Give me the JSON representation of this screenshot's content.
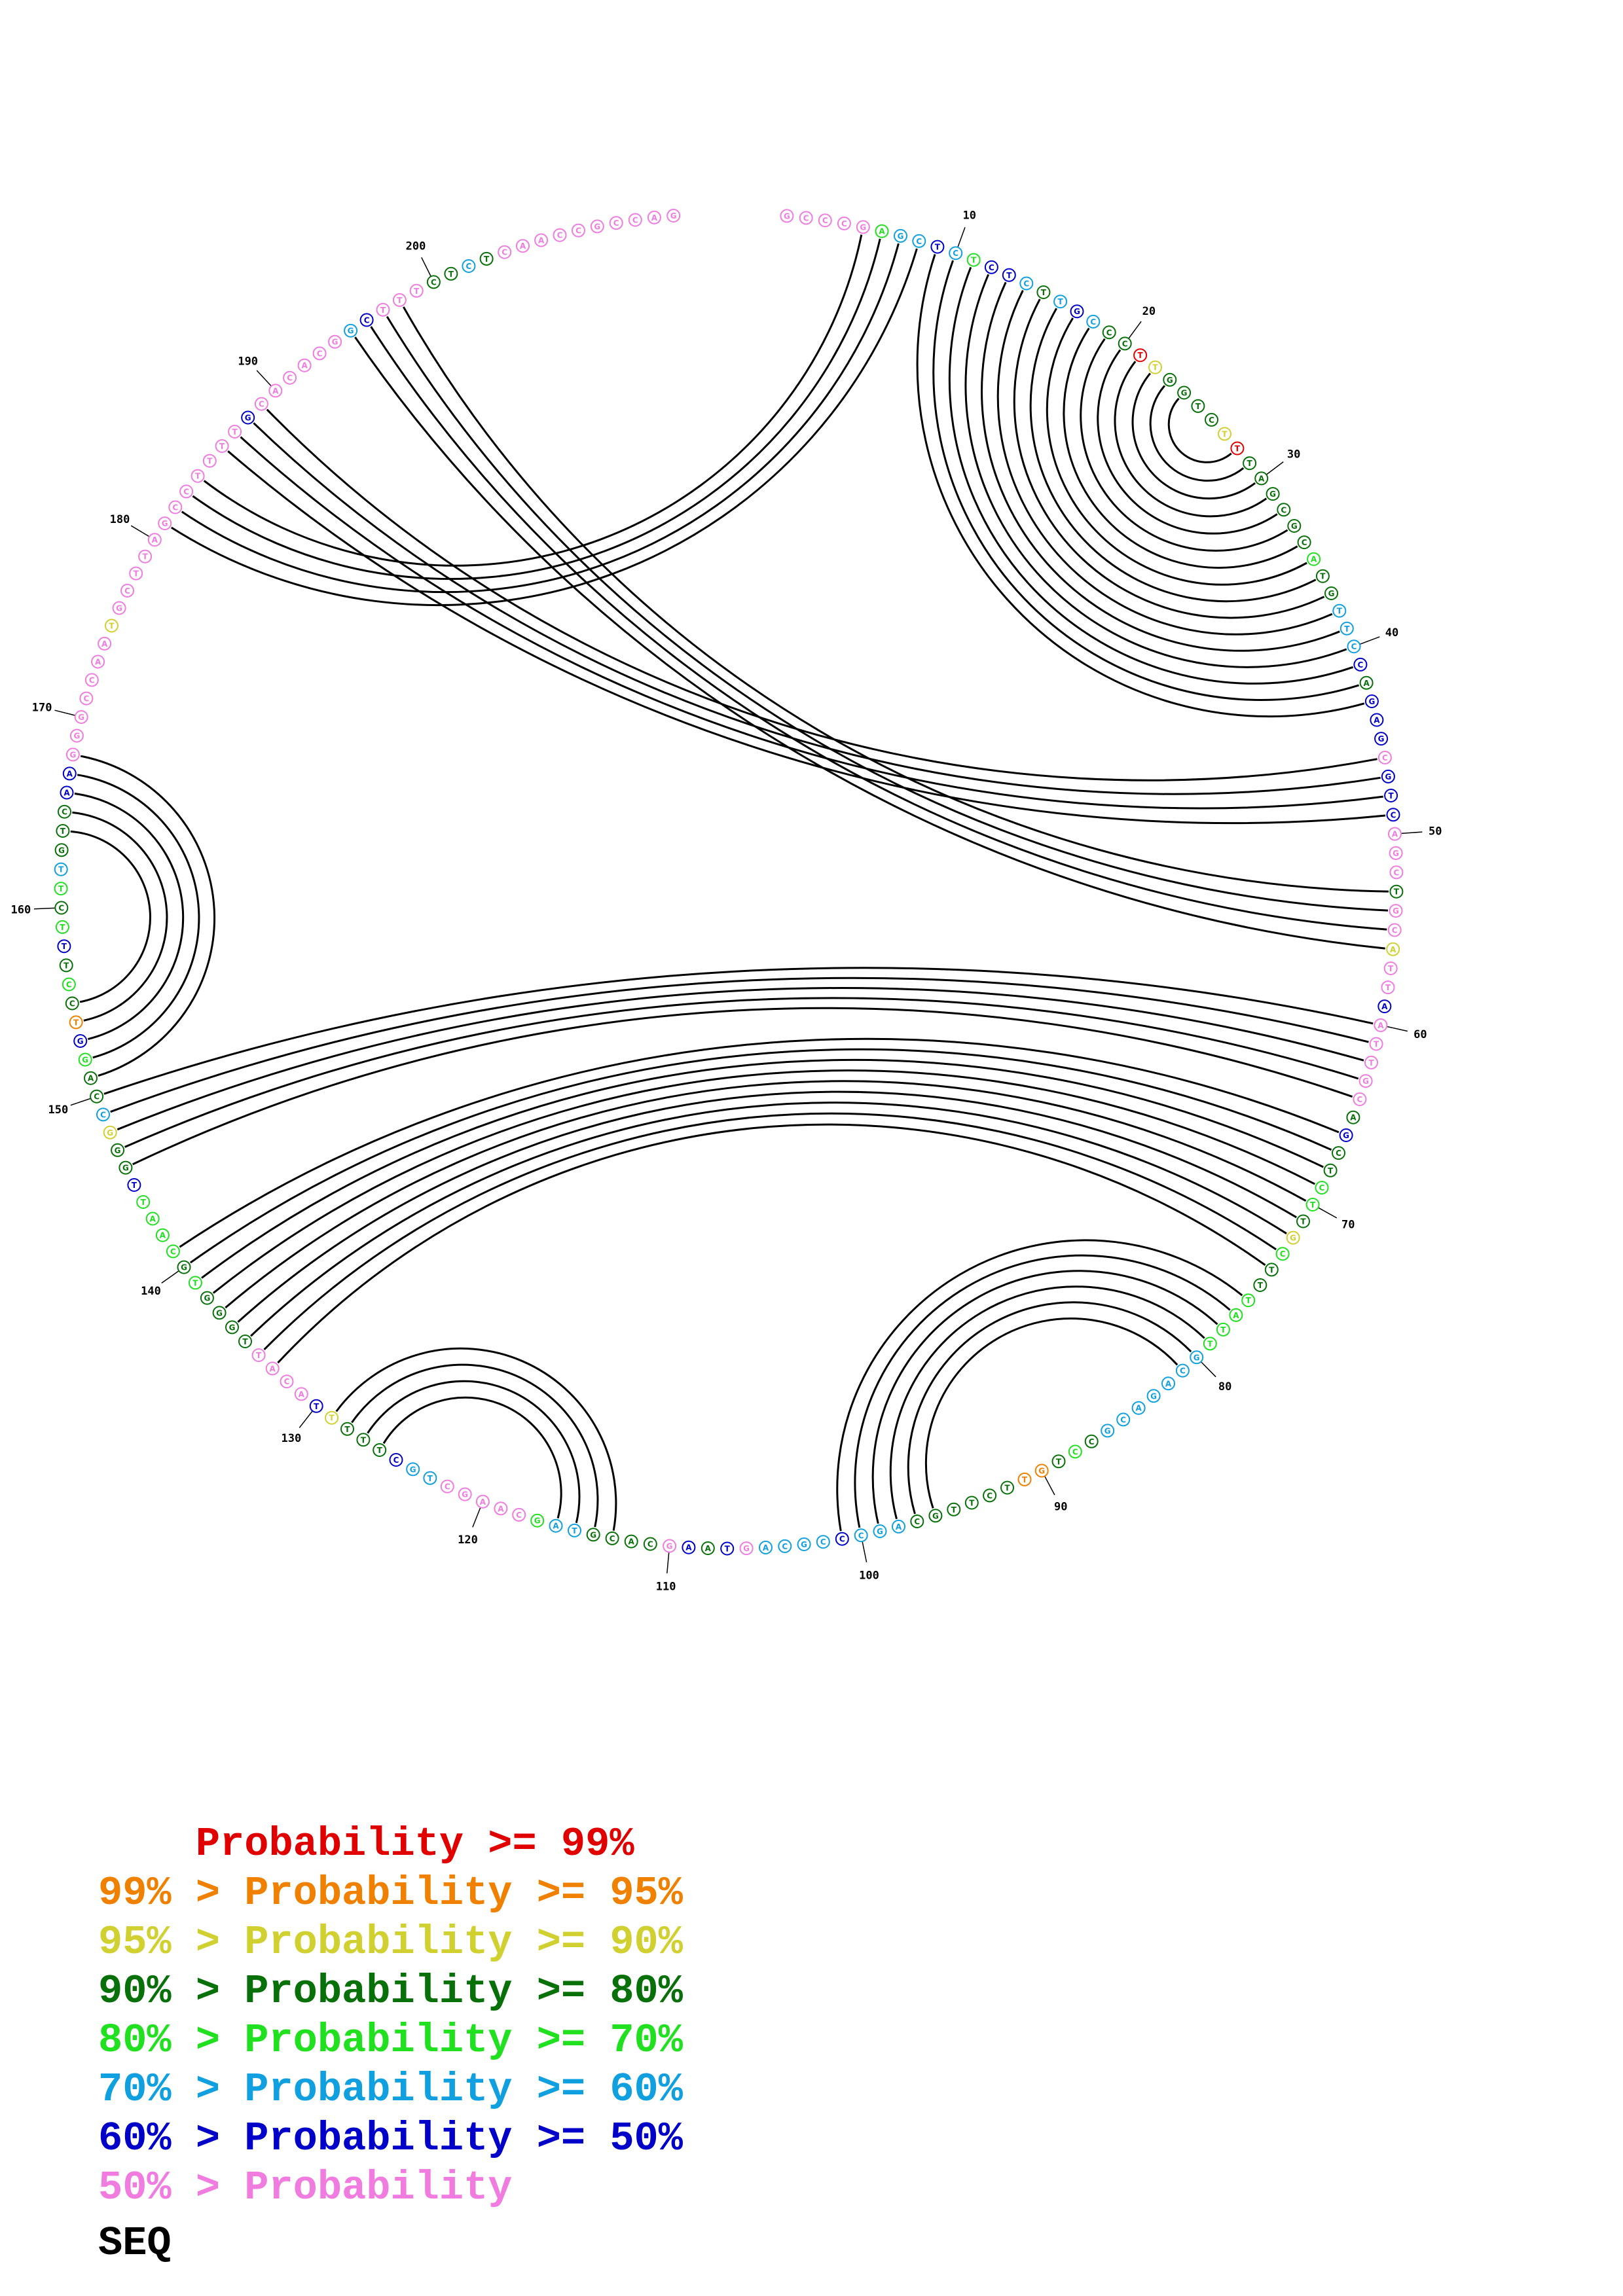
{
  "sequence": "GCCCGAGCTCTCTCTTGCCCTTGGTCTTTAGCGCATGTTCCAGAGCGTCAGCTGCATTAATTGCAGCTCTTGCTTTATTGCAGACGCCTGTTCTTGCAGCCCGCAGTAAGCACGTAGCAAGCTGCTTTTTACATTGGGTGCAATTGGGCCAGGTCCTTTCTTGTCAAGGGCCAATGCTTAGCCTTTTGCACACGGCTTTCTCTCAACCGCCAG",
  "probability_classes": [
    "pink",
    "pink",
    "pink",
    "pink",
    "pink",
    "green",
    "cyan",
    "cyan",
    "blue",
    "cyan",
    "green",
    "blue",
    "blue",
    "cyan",
    "dkgreen",
    "cyan",
    "blue",
    "cyan",
    "dkgreen",
    "dkgreen",
    "red",
    "yellow",
    "dkgreen",
    "dkgreen",
    "dkgreen",
    "dkgreen",
    "yellow",
    "red",
    "dkgreen",
    "dkgreen",
    "dkgreen",
    "dkgreen",
    "dkgreen",
    "dkgreen",
    "green",
    "dkgreen",
    "dkgreen",
    "cyan",
    "cyan",
    "cyan",
    "blue",
    "dkgreen",
    "blue",
    "blue",
    "blue",
    "pink",
    "blue",
    "blue",
    "blue",
    "pink",
    "pink",
    "pink",
    "dkgreen",
    "pink",
    "pink",
    "yellow",
    "pink",
    "pink",
    "blue",
    "pink",
    "pink",
    "pink",
    "pink",
    "pink",
    "dkgreen",
    "blue",
    "dkgreen",
    "dkgreen",
    "green",
    "green",
    "dkgreen",
    "yellow",
    "green",
    "dkgreen",
    "dkgreen",
    "green",
    "green",
    "green",
    "green",
    "cyan",
    "cyan",
    "cyan",
    "cyan",
    "cyan",
    "cyan",
    "cyan",
    "dkgreen",
    "green",
    "dkgreen",
    "orange",
    "orange",
    "dkgreen",
    "dkgreen",
    "dkgreen",
    "dkgreen",
    "dkgreen",
    "dkgreen",
    "cyan",
    "cyan",
    "cyan",
    "blue",
    "cyan",
    "cyan",
    "cyan",
    "cyan",
    "pink",
    "blue",
    "dkgreen",
    "blue",
    "pink",
    "dkgreen",
    "dkgreen",
    "dkgreen",
    "dkgreen",
    "cyan",
    "cyan",
    "green",
    "pink",
    "pink",
    "pink",
    "pink",
    "pink",
    "cyan",
    "cyan",
    "blue",
    "dkgreen",
    "dkgreen",
    "dkgreen",
    "yellow",
    "blue",
    "pink",
    "pink",
    "pink",
    "pink",
    "dkgreen",
    "dkgreen",
    "dkgreen",
    "dkgreen",
    "green",
    "dkgreen",
    "green",
    "green",
    "green",
    "green",
    "blue",
    "dkgreen",
    "dkgreen",
    "yellow",
    "cyan",
    "dkgreen",
    "dkgreen",
    "green",
    "blue",
    "orange",
    "dkgreen",
    "green",
    "dkgreen",
    "blue",
    "green",
    "dkgreen",
    "green",
    "cyan",
    "dkgreen",
    "dkgreen",
    "dkgreen",
    "blue",
    "blue",
    "pink",
    "pink",
    "pink",
    "pink",
    "pink",
    "pink",
    "pink",
    "yellow",
    "pink",
    "pink",
    "pink",
    "pink",
    "pink",
    "pink",
    "pink",
    "pink",
    "pink",
    "pink",
    "pink",
    "pink",
    "blue",
    "pink",
    "pink",
    "pink",
    "pink",
    "pink",
    "pink",
    "cyan",
    "blue",
    "pink",
    "pink",
    "pink",
    "dkgreen",
    "dkgreen",
    "cyan",
    "dkgreen",
    "pink",
    "pink",
    "pink",
    "pink",
    "pink",
    "pink",
    "pink",
    "pink",
    "pink",
    "pink"
  ],
  "position_marks": [
    10,
    20,
    30,
    40,
    50,
    60,
    70,
    80,
    90,
    100,
    110,
    120,
    130,
    140,
    150,
    160,
    170,
    180,
    190,
    200
  ],
  "base_pairs": [
    [
      5,
      184
    ],
    [
      6,
      183
    ],
    [
      7,
      182
    ],
    [
      8,
      181
    ],
    [
      9,
      43
    ],
    [
      10,
      42
    ],
    [
      11,
      41
    ],
    [
      12,
      40
    ],
    [
      13,
      39
    ],
    [
      14,
      38
    ],
    [
      15,
      37
    ],
    [
      16,
      36
    ],
    [
      17,
      35
    ],
    [
      18,
      34
    ],
    [
      19,
      33
    ],
    [
      20,
      32
    ],
    [
      21,
      31
    ],
    [
      22,
      30
    ],
    [
      23,
      29
    ],
    [
      24,
      28
    ],
    [
      46,
      189
    ],
    [
      47,
      188
    ],
    [
      48,
      187
    ],
    [
      49,
      186
    ],
    [
      53,
      198
    ],
    [
      54,
      197
    ],
    [
      55,
      196
    ],
    [
      56,
      195
    ],
    [
      60,
      150
    ],
    [
      61,
      149
    ],
    [
      62,
      148
    ],
    [
      63,
      147
    ],
    [
      64,
      146
    ],
    [
      66,
      141
    ],
    [
      67,
      140
    ],
    [
      68,
      139
    ],
    [
      69,
      138
    ],
    [
      70,
      137
    ],
    [
      71,
      136
    ],
    [
      72,
      135
    ],
    [
      73,
      134
    ],
    [
      74,
      133
    ],
    [
      76,
      101
    ],
    [
      77,
      100
    ],
    [
      78,
      99
    ],
    [
      79,
      98
    ],
    [
      80,
      97
    ],
    [
      81,
      96
    ],
    [
      113,
      129
    ],
    [
      114,
      128
    ],
    [
      115,
      127
    ],
    [
      116,
      126
    ],
    [
      151,
      168
    ],
    [
      152,
      167
    ],
    [
      153,
      166
    ],
    [
      154,
      165
    ],
    [
      155,
      164
    ]
  ],
  "colors": {
    "red": "#e00000",
    "orange": "#f08000",
    "yellow": "#d0d030",
    "dkgreen": "#087008",
    "green": "#20e020",
    "cyan": "#10a0e0",
    "blue": "#0000c8",
    "pink": "#f07ce0",
    "black": "#000000"
  },
  "legend": [
    {
      "text": "    Probability >= 99%",
      "color_key": "red"
    },
    {
      "text": "99% > Probability >= 95%",
      "color_key": "orange"
    },
    {
      "text": "95% > Probability >= 90%",
      "color_key": "yellow"
    },
    {
      "text": "90% > Probability >= 80%",
      "color_key": "dkgreen"
    },
    {
      "text": "80% > Probability >= 70%",
      "color_key": "green"
    },
    {
      "text": "70% > Probability >= 60%",
      "color_key": "cyan"
    },
    {
      "text": "60% > Probability >= 50%",
      "color_key": "blue"
    },
    {
      "text": "50% > Probability",
      "color_key": "pink"
    }
  ],
  "seq_label": "SEQ"
}
